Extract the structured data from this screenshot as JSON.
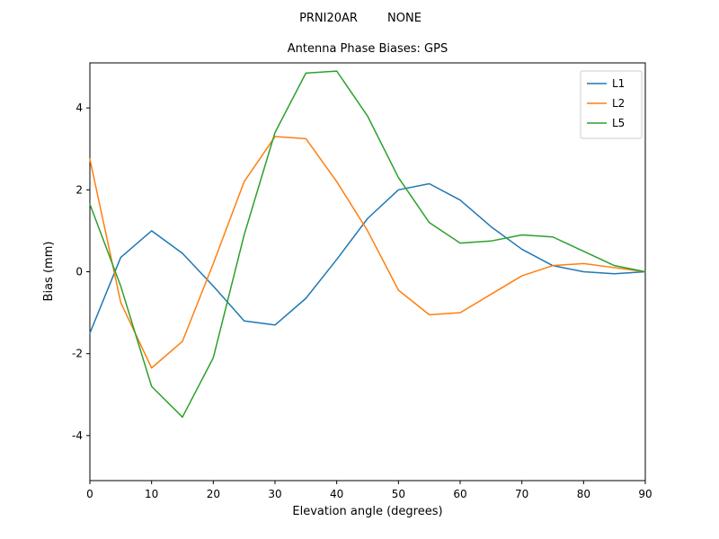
{
  "title_top": "PRNI20AR        NONE",
  "title": "Antenna Phase Biases: GPS",
  "chart_data": {
    "type": "line",
    "title": "Antenna Phase Biases: GPS",
    "suptitle": "PRNI20AR        NONE",
    "xlabel": "Elevation angle (degrees)",
    "ylabel": "Bias (mm)",
    "xlim": [
      0,
      90
    ],
    "ylim": [
      -5.1,
      5.1
    ],
    "xticks": [
      0,
      10,
      20,
      30,
      40,
      50,
      60,
      70,
      80,
      90
    ],
    "yticks": [
      -4,
      -2,
      0,
      2,
      4
    ],
    "grid": false,
    "legend_position": "upper right",
    "x": [
      0,
      5,
      10,
      15,
      20,
      25,
      30,
      35,
      40,
      45,
      50,
      55,
      60,
      65,
      70,
      75,
      80,
      85,
      90
    ],
    "series": [
      {
        "name": "L1",
        "color": "#1f77b4",
        "values": [
          -1.5,
          0.35,
          1.0,
          0.45,
          -0.35,
          -1.2,
          -1.3,
          -0.65,
          0.3,
          1.3,
          2.0,
          2.15,
          1.75,
          1.1,
          0.55,
          0.15,
          0.0,
          -0.05,
          0.0
        ]
      },
      {
        "name": "L2",
        "color": "#ff7f0e",
        "values": [
          2.75,
          -0.75,
          -2.35,
          -1.7,
          0.2,
          2.2,
          3.3,
          3.25,
          2.2,
          1.0,
          -0.45,
          -1.05,
          -1.0,
          -0.55,
          -0.1,
          0.15,
          0.2,
          0.1,
          0.0
        ]
      },
      {
        "name": "L5",
        "color": "#2ca02c",
        "values": [
          1.65,
          -0.35,
          -2.8,
          -3.55,
          -2.1,
          0.9,
          3.4,
          4.85,
          4.9,
          3.8,
          2.3,
          1.2,
          0.7,
          0.75,
          0.9,
          0.85,
          0.5,
          0.15,
          0.0
        ]
      }
    ]
  }
}
